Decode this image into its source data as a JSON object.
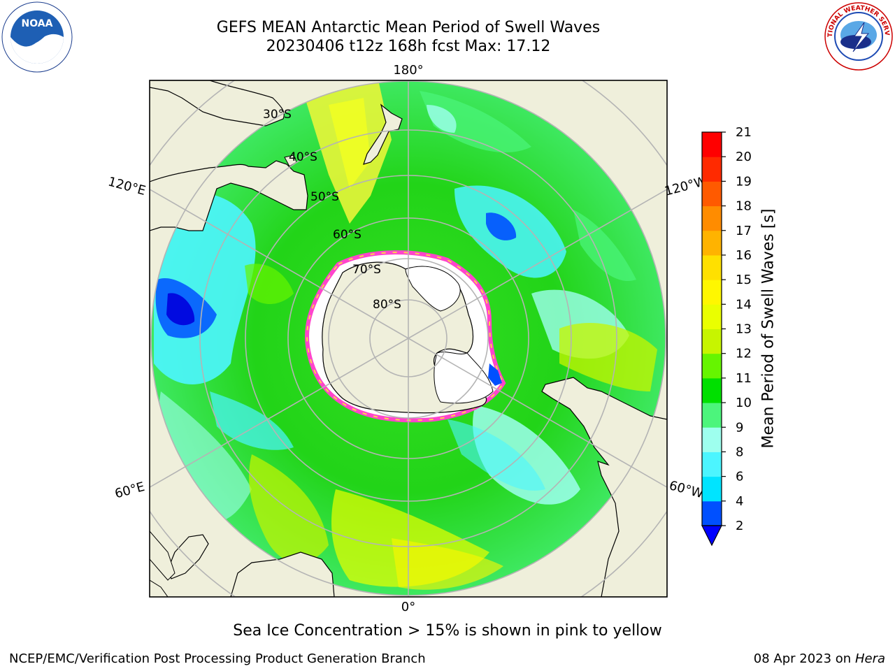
{
  "title": {
    "line1": "GEFS MEAN Antarctic Mean Period of Swell Waves",
    "line2": "20230406 t12z 168h fcst   Max: 17.12"
  },
  "map": {
    "projection": "south-polar-stereographic",
    "lon_labels": {
      "top": "180°",
      "bottom": "0°",
      "upper_left": "120°E",
      "upper_right": "120°W",
      "lower_left": "60°E",
      "lower_right": "60°W"
    },
    "lat_labels": [
      "30°S",
      "40°S",
      "50°S",
      "60°S",
      "70°S",
      "80°S"
    ]
  },
  "colorbar": {
    "label": "Mean Period of Swell Waves [s]",
    "ticks": [
      "2",
      "4",
      "6",
      "8",
      "9",
      "10",
      "11",
      "12",
      "13",
      "14",
      "15",
      "16",
      "17",
      "18",
      "19",
      "20",
      "21"
    ],
    "colors": [
      "#0050ff",
      "#00e4ff",
      "#4cf5ff",
      "#9effee",
      "#4cf57c",
      "#00e000",
      "#66f500",
      "#c7f500",
      "#eaff00",
      "#fff700",
      "#ffe000",
      "#ffb300",
      "#ff8c00",
      "#ff5a00",
      "#ff2a00",
      "#ff0000"
    ],
    "under_color": "#0000ff"
  },
  "notes": {
    "ice": "Sea Ice Concentration > 15% is shown in pink to yellow"
  },
  "footer": {
    "left": "NCEP/EMC/Verification Post Processing Product Generation Branch",
    "date": "08 Apr 2023 on ",
    "host": "Hera"
  },
  "logos": {
    "noaa_text": "NOAA",
    "nws_text": "NATIONAL WEATHER SERVICE"
  }
}
